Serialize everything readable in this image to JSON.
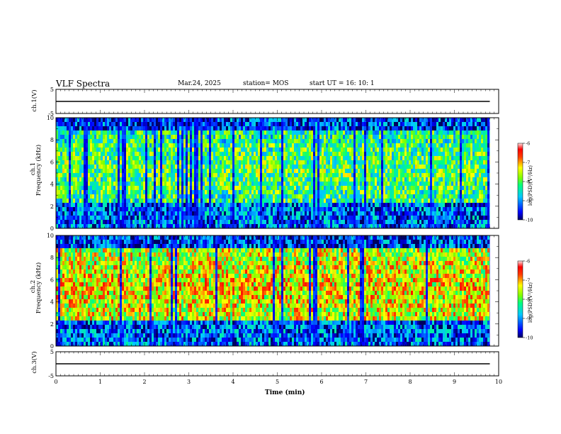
{
  "header": {
    "title": "VLF Spectra",
    "date": "Mar.24, 2025",
    "station": "station= MOS",
    "start_ut": "start  UT =   16: 10: 1"
  },
  "chart_data": [
    {
      "type": "line",
      "panel": "ch1-waveform",
      "ylabel": "ch.1(V)",
      "xlim": [
        0,
        10
      ],
      "ylim": [
        -5,
        5
      ],
      "yticks": [
        "5",
        "-5"
      ],
      "series": [
        {
          "x": [
            0,
            9.8
          ],
          "values": [
            0,
            0
          ]
        }
      ]
    },
    {
      "type": "heatmap",
      "panel": "ch1-spectrogram",
      "ylabel_top": "ch.1",
      "ylabel": "Frequency (kHz)",
      "xlim": [
        0,
        10
      ],
      "ylim": [
        0,
        10
      ],
      "yticks": [
        "0",
        "2",
        "4",
        "6",
        "8",
        "10"
      ],
      "colorbar": {
        "label": "log(PSD)(V²/Hz)",
        "range": [
          -10,
          -6
        ],
        "ticks": [
          "-6",
          "-7",
          "-8",
          "-9",
          "-10"
        ]
      },
      "data_extent_x": [
        0,
        9.8
      ]
    },
    {
      "type": "heatmap",
      "panel": "ch2-spectrogram",
      "ylabel_top": "ch.2",
      "ylabel": "Frequency (kHz)",
      "xlim": [
        0,
        10
      ],
      "ylim": [
        0,
        10
      ],
      "yticks": [
        "0",
        "2",
        "4",
        "6",
        "8",
        "10"
      ],
      "colorbar": {
        "label": "log(PSD)(V²/Hz)",
        "range": [
          -10,
          -6
        ],
        "ticks": [
          "-6",
          "-7",
          "-8",
          "-9",
          "-10"
        ]
      },
      "data_extent_x": [
        0,
        9.8
      ]
    },
    {
      "type": "line",
      "panel": "ch3-waveform",
      "ylabel": "ch.3(V)",
      "xlim": [
        0,
        10
      ],
      "ylim": [
        -5,
        5
      ],
      "yticks": [
        "5",
        "-5"
      ],
      "xlabel": "Time (min)",
      "xticks": [
        "0",
        "1",
        "2",
        "3",
        "4",
        "5",
        "6",
        "7",
        "8",
        "9",
        "10"
      ],
      "series": [
        {
          "x": [
            0,
            9.8
          ],
          "values": [
            0,
            0
          ]
        }
      ]
    }
  ]
}
